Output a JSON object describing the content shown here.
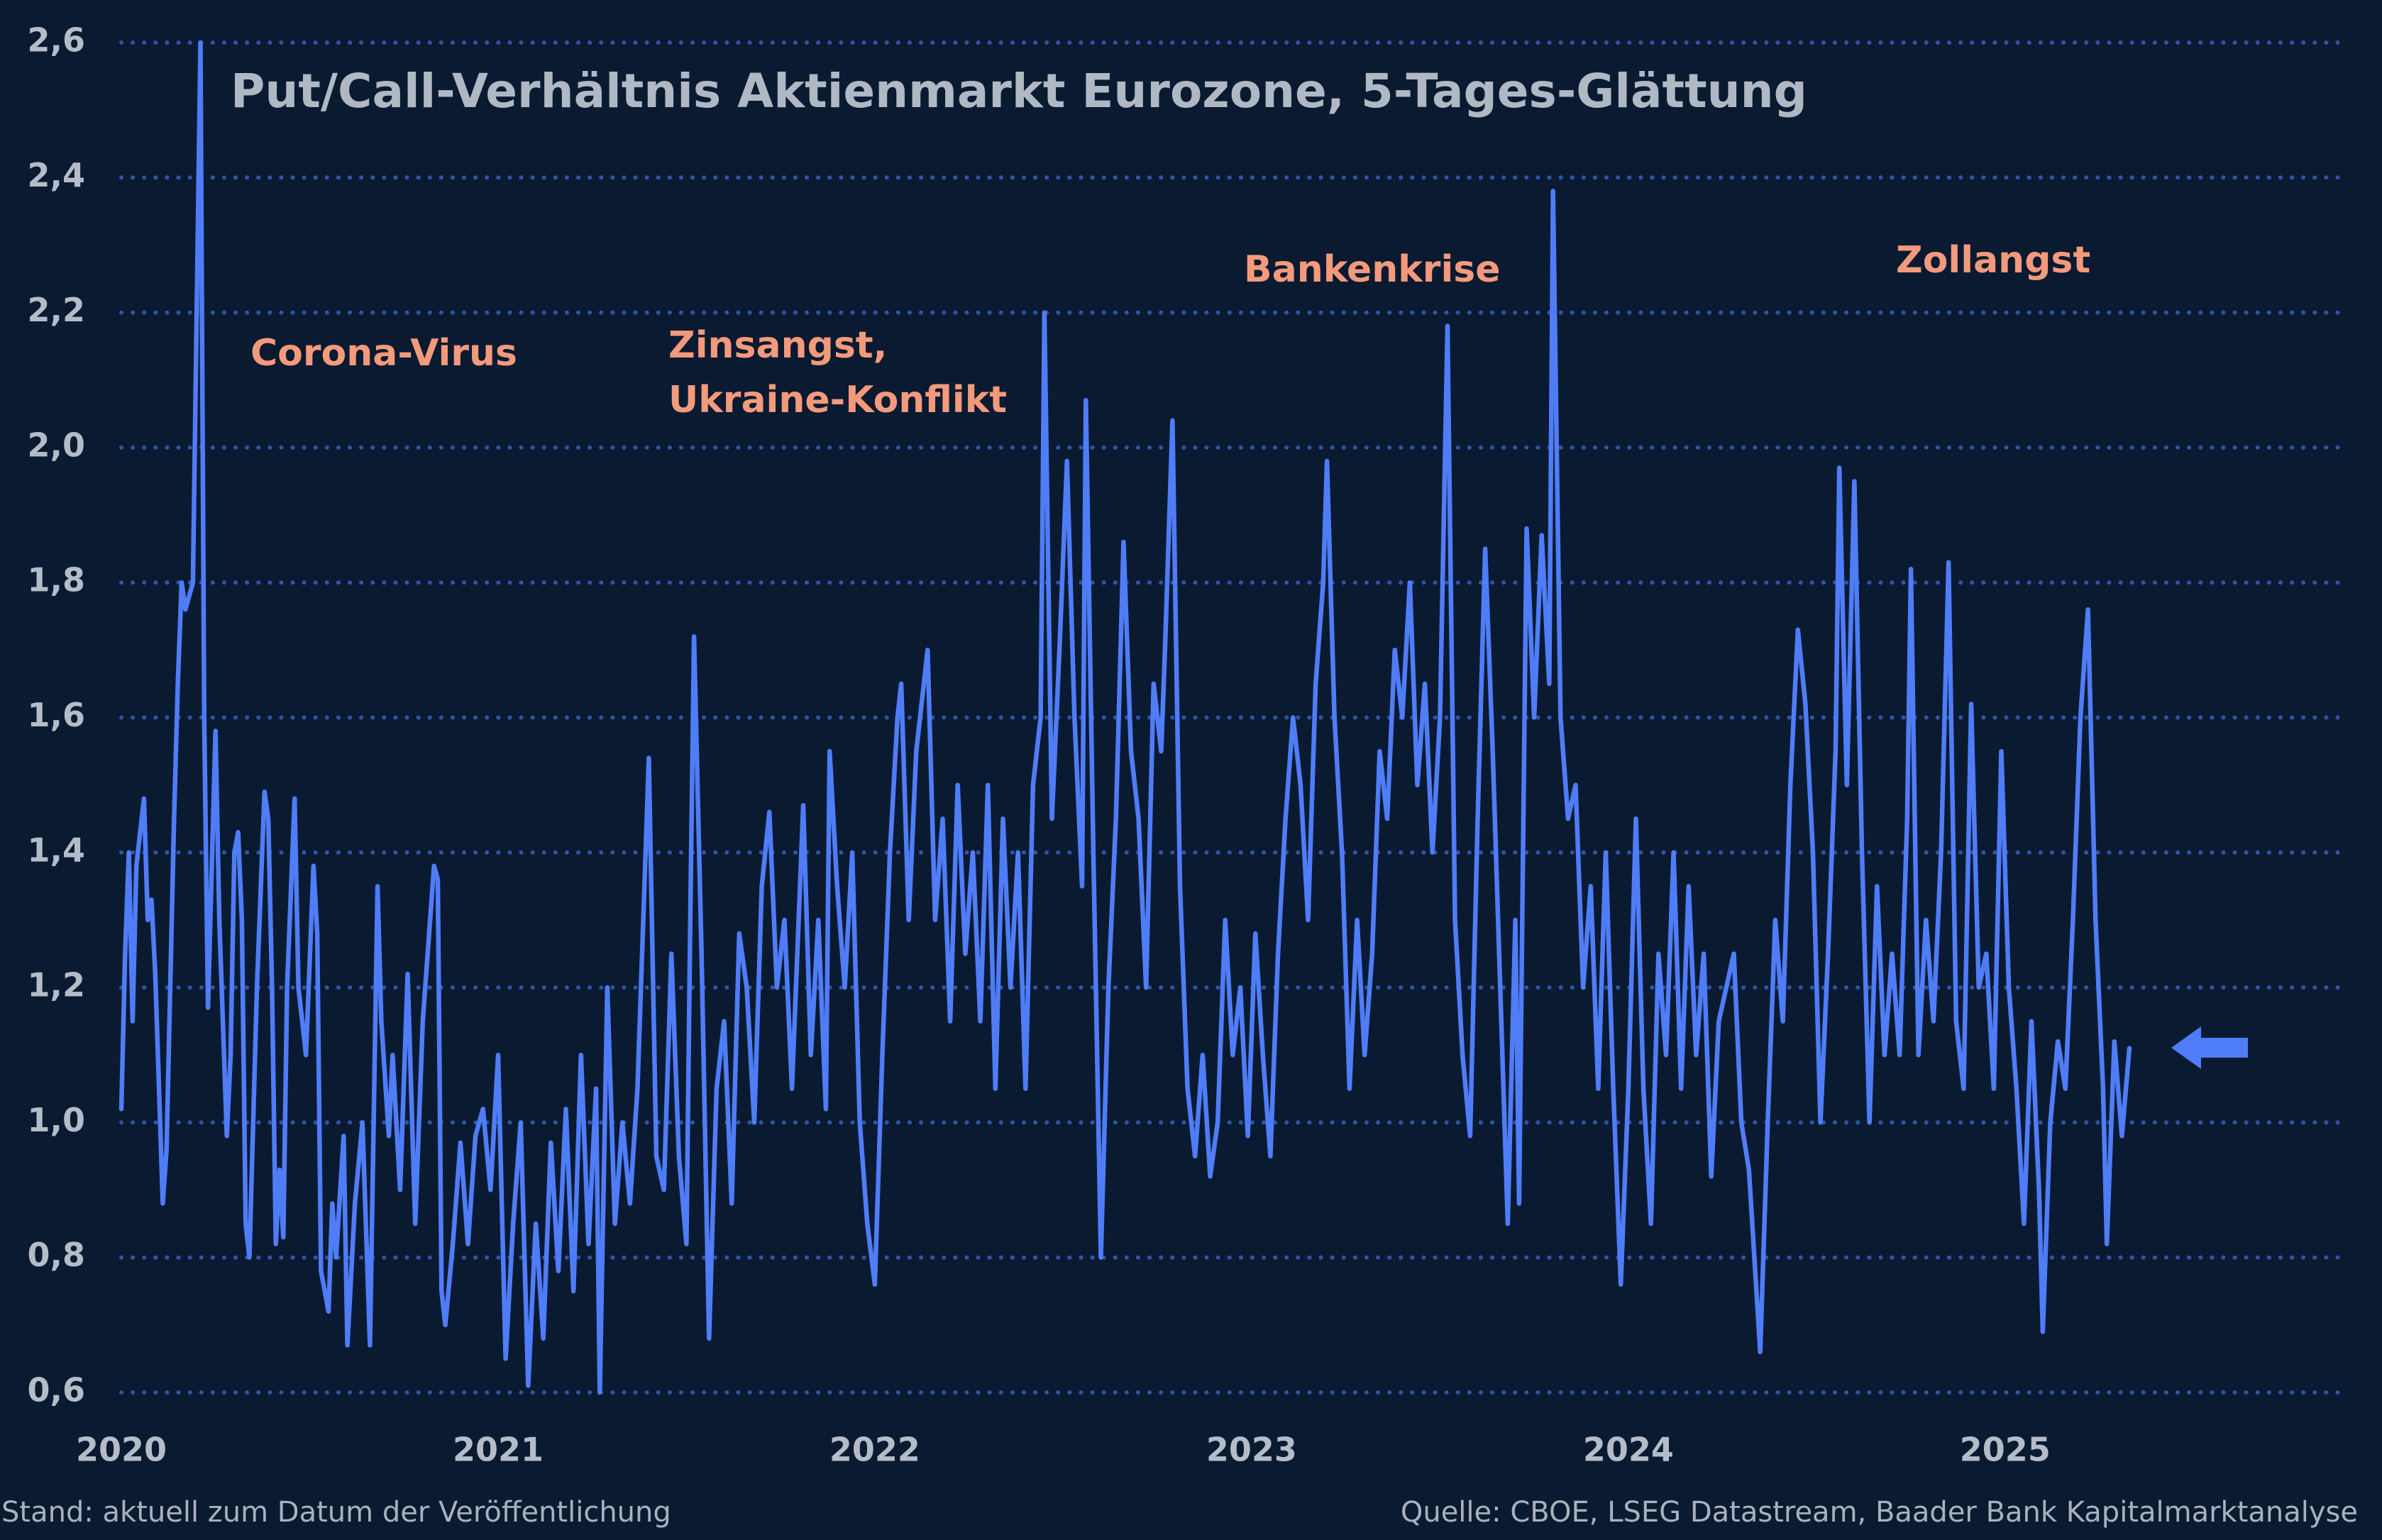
{
  "chart_data": {
    "type": "line",
    "title": "Put/Call-Verhältnis Aktienmarkt Eurozone, 5-Tages-Glättung",
    "annotations": [
      {
        "lines": [
          "Corona-Virus"
        ]
      },
      {
        "lines": [
          "Zinsangst,",
          "Ukraine-Konflikt"
        ]
      },
      {
        "lines": [
          "Bankenkrise"
        ]
      },
      {
        "lines": [
          "Zollangst"
        ]
      }
    ],
    "note": "Stand: aktuell zum Datum der Veröffentlichung",
    "source": "Quelle: CBOE, LSEG Datastream, Baader Bank Kapitalmarktanalyse",
    "color": "#4f7cf7",
    "grid": true,
    "xlim": [
      2020,
      2025.91
    ],
    "xticks": [
      2020,
      2021,
      2022,
      2023,
      2024,
      2025
    ],
    "ylim": [
      0.6,
      2.6
    ],
    "yticks": [
      {
        "value": 0.6,
        "label": "0,6"
      },
      {
        "value": 0.8,
        "label": "0,8"
      },
      {
        "value": 1.0,
        "label": "1,0"
      },
      {
        "value": 1.2,
        "label": "1,2"
      },
      {
        "value": 1.4,
        "label": "1,4"
      },
      {
        "value": 1.6,
        "label": "1,6"
      },
      {
        "value": 1.8,
        "label": "1,8"
      },
      {
        "value": 2.0,
        "label": "2,0"
      },
      {
        "value": 2.2,
        "label": "2,2"
      },
      {
        "value": 2.4,
        "label": "2,4"
      },
      {
        "value": 2.6,
        "label": "2,6"
      }
    ],
    "x": [
      2020,
      2020.01,
      2020.02,
      2020.03,
      2020.04,
      2020.06,
      2020.07,
      2020.08,
      2020.09,
      2020.1,
      2020.11,
      2020.12,
      2020.14,
      2020.15,
      2020.16,
      2020.17,
      2020.19,
      2020.21,
      2020.22,
      2020.23,
      2020.25,
      2020.26,
      2020.28,
      2020.29,
      2020.3,
      2020.31,
      2020.32,
      2020.33,
      2020.34,
      2020.36,
      2020.38,
      2020.39,
      2020.4,
      2020.41,
      2020.42,
      2020.43,
      2020.44,
      2020.46,
      2020.47,
      2020.49,
      2020.51,
      2020.52,
      2020.53,
      2020.55,
      2020.56,
      2020.57,
      2020.59,
      2020.6,
      2020.62,
      2020.64,
      2020.66,
      2020.68,
      2020.69,
      2020.71,
      2020.72,
      2020.74,
      2020.76,
      2020.78,
      2020.8,
      2020.83,
      2020.84,
      2020.85,
      2020.86,
      2020.88,
      2020.9,
      2020.92,
      2020.94,
      2020.96,
      2020.98,
      2021,
      2021.02,
      2021.04,
      2021.06,
      2021.08,
      2021.1,
      2021.12,
      2021.14,
      2021.16,
      2021.18,
      2021.2,
      2021.22,
      2021.24,
      2021.26,
      2021.27,
      2021.29,
      2021.31,
      2021.33,
      2021.35,
      2021.37,
      2021.4,
      2021.42,
      2021.44,
      2021.46,
      2021.48,
      2021.5,
      2021.51,
      2021.52,
      2021.54,
      2021.56,
      2021.58,
      2021.6,
      2021.62,
      2021.64,
      2021.66,
      2021.68,
      2021.7,
      2021.72,
      2021.74,
      2021.76,
      2021.78,
      2021.81,
      2021.83,
      2021.85,
      2021.87,
      2021.88,
      2021.9,
      2021.92,
      2021.94,
      2021.96,
      2021.98,
      2022,
      2022.02,
      2022.04,
      2022.06,
      2022.07,
      2022.09,
      2022.11,
      2022.14,
      2022.16,
      2022.18,
      2022.2,
      2022.22,
      2022.24,
      2022.26,
      2022.28,
      2022.3,
      2022.32,
      2022.34,
      2022.36,
      2022.38,
      2022.4,
      2022.42,
      2022.44,
      2022.45,
      2022.47,
      2022.49,
      2022.51,
      2022.53,
      2022.55,
      2022.56,
      2022.58,
      2022.6,
      2022.62,
      2022.64,
      2022.66,
      2022.68,
      2022.7,
      2022.72,
      2022.74,
      2022.76,
      2022.77,
      2022.79,
      2022.81,
      2022.83,
      2022.85,
      2022.87,
      2022.89,
      2022.91,
      2022.93,
      2022.95,
      2022.97,
      2022.99,
      2023.01,
      2023.03,
      2023.05,
      2023.07,
      2023.09,
      2023.11,
      2023.13,
      2023.15,
      2023.17,
      2023.19,
      2023.2,
      2023.22,
      2023.24,
      2023.26,
      2023.28,
      2023.3,
      2023.32,
      2023.34,
      2023.36,
      2023.38,
      2023.4,
      2023.42,
      2023.44,
      2023.46,
      2023.48,
      2023.5,
      2023.52,
      2023.54,
      2023.56,
      2023.58,
      2023.6,
      2023.62,
      2023.64,
      2023.66,
      2023.68,
      2023.7,
      2023.71,
      2023.73,
      2023.75,
      2023.77,
      2023.79,
      2023.8,
      2023.82,
      2023.84,
      2023.86,
      2023.88,
      2023.9,
      2023.92,
      2023.94,
      2023.96,
      2023.98,
      2024,
      2024.02,
      2024.04,
      2024.06,
      2024.08,
      2024.1,
      2024.12,
      2024.14,
      2024.16,
      2024.18,
      2024.2,
      2024.22,
      2024.24,
      2024.26,
      2024.28,
      2024.3,
      2024.32,
      2024.34,
      2024.35,
      2024.37,
      2024.39,
      2024.41,
      2024.43,
      2024.45,
      2024.47,
      2024.49,
      2024.51,
      2024.53,
      2024.55,
      2024.56,
      2024.58,
      2024.6,
      2024.62,
      2024.64,
      2024.66,
      2024.68,
      2024.7,
      2024.72,
      2024.74,
      2024.75,
      2024.77,
      2024.79,
      2024.81,
      2024.83,
      2024.85,
      2024.87,
      2024.89,
      2024.91,
      2024.93,
      2024.95,
      2024.97,
      2024.99,
      2025.01,
      2025.03,
      2025.05,
      2025.07,
      2025.09,
      2025.1,
      2025.12,
      2025.14,
      2025.16,
      2025.18,
      2025.2,
      2025.22,
      2025.24,
      2025.26,
      2025.27,
      2025.29,
      2025.31,
      2025.33
    ],
    "values": [
      1.02,
      1.25,
      1.4,
      1.15,
      1.38,
      1.48,
      1.3,
      1.33,
      1.22,
      1.05,
      0.88,
      0.96,
      1.45,
      1.65,
      1.8,
      1.76,
      1.8,
      2.6,
      1.6,
      1.17,
      1.58,
      1.3,
      0.98,
      1.1,
      1.4,
      1.43,
      1.3,
      0.85,
      0.8,
      1.2,
      1.49,
      1.45,
      1.2,
      0.82,
      0.93,
      0.83,
      1.2,
      1.48,
      1.2,
      1.1,
      1.38,
      1.28,
      0.78,
      0.72,
      0.88,
      0.8,
      0.98,
      0.67,
      0.88,
      1.0,
      0.67,
      1.35,
      1.15,
      0.98,
      1.1,
      0.9,
      1.22,
      0.85,
      1.15,
      1.38,
      1.36,
      0.75,
      0.7,
      0.82,
      0.97,
      0.82,
      0.98,
      1.02,
      0.9,
      1.1,
      0.65,
      0.85,
      1.0,
      0.61,
      0.85,
      0.68,
      0.97,
      0.78,
      1.02,
      0.75,
      1.1,
      0.82,
      1.05,
      0.6,
      1.2,
      0.85,
      1.0,
      0.88,
      1.05,
      1.54,
      0.95,
      0.9,
      1.25,
      0.95,
      0.82,
      1.3,
      1.72,
      1.25,
      0.68,
      1.05,
      1.15,
      0.88,
      1.28,
      1.2,
      1.0,
      1.35,
      1.46,
      1.2,
      1.3,
      1.05,
      1.47,
      1.1,
      1.3,
      1.02,
      1.55,
      1.35,
      1.2,
      1.4,
      1.0,
      0.85,
      0.76,
      1.1,
      1.4,
      1.6,
      1.65,
      1.3,
      1.55,
      1.7,
      1.3,
      1.45,
      1.15,
      1.5,
      1.25,
      1.4,
      1.15,
      1.5,
      1.05,
      1.45,
      1.2,
      1.4,
      1.05,
      1.5,
      1.6,
      2.2,
      1.45,
      1.7,
      1.98,
      1.6,
      1.35,
      2.07,
      1.4,
      0.8,
      1.2,
      1.45,
      1.86,
      1.55,
      1.45,
      1.2,
      1.65,
      1.55,
      1.7,
      2.04,
      1.35,
      1.05,
      0.95,
      1.1,
      0.92,
      1.0,
      1.3,
      1.1,
      1.2,
      0.98,
      1.28,
      1.1,
      0.95,
      1.25,
      1.45,
      1.6,
      1.5,
      1.3,
      1.65,
      1.8,
      1.98,
      1.6,
      1.4,
      1.05,
      1.3,
      1.1,
      1.25,
      1.55,
      1.45,
      1.7,
      1.6,
      1.8,
      1.5,
      1.65,
      1.4,
      1.6,
      2.18,
      1.3,
      1.1,
      0.98,
      1.45,
      1.85,
      1.55,
      1.2,
      0.85,
      1.3,
      0.88,
      1.88,
      1.6,
      1.87,
      1.65,
      2.38,
      1.6,
      1.45,
      1.5,
      1.2,
      1.35,
      1.05,
      1.4,
      1.05,
      0.76,
      1.05,
      1.45,
      1.05,
      0.85,
      1.25,
      1.1,
      1.4,
      1.05,
      1.35,
      1.1,
      1.25,
      0.92,
      1.15,
      1.2,
      1.25,
      1.0,
      0.93,
      0.75,
      0.66,
      1.0,
      1.3,
      1.15,
      1.5,
      1.73,
      1.62,
      1.4,
      1.0,
      1.25,
      1.55,
      1.97,
      1.5,
      1.95,
      1.4,
      1.0,
      1.35,
      1.1,
      1.25,
      1.1,
      1.45,
      1.82,
      1.1,
      1.3,
      1.15,
      1.4,
      1.83,
      1.15,
      1.05,
      1.62,
      1.2,
      1.25,
      1.05,
      1.55,
      1.2,
      1.05,
      0.85,
      1.15,
      0.9,
      0.69,
      1.0,
      1.12,
      1.05,
      1.3,
      1.6,
      1.76,
      1.3,
      1.05,
      0.82,
      1.12,
      0.98,
      1.11
    ]
  }
}
